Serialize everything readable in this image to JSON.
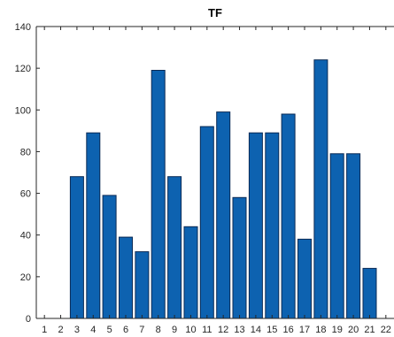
{
  "chart_data": {
    "type": "bar",
    "title": "TF",
    "xlabel": "",
    "ylabel": "",
    "categories": [
      "1",
      "2",
      "3",
      "4",
      "5",
      "6",
      "7",
      "8",
      "9",
      "10",
      "11",
      "12",
      "13",
      "14",
      "15",
      "16",
      "17",
      "18",
      "19",
      "20",
      "21",
      "22"
    ],
    "values": [
      0,
      0,
      68,
      89,
      59,
      39,
      32,
      119,
      68,
      44,
      92,
      99,
      58,
      89,
      89,
      98,
      38,
      124,
      79,
      79,
      24,
      0
    ],
    "ylim": [
      0,
      140
    ],
    "yticks": [
      0,
      20,
      40,
      60,
      80,
      100,
      120,
      140
    ],
    "grid": false,
    "legend": "none",
    "colors": {
      "bar_fill": "#0d62b0",
      "bar_edge": "#0a2a55",
      "axis": "#262626"
    }
  }
}
